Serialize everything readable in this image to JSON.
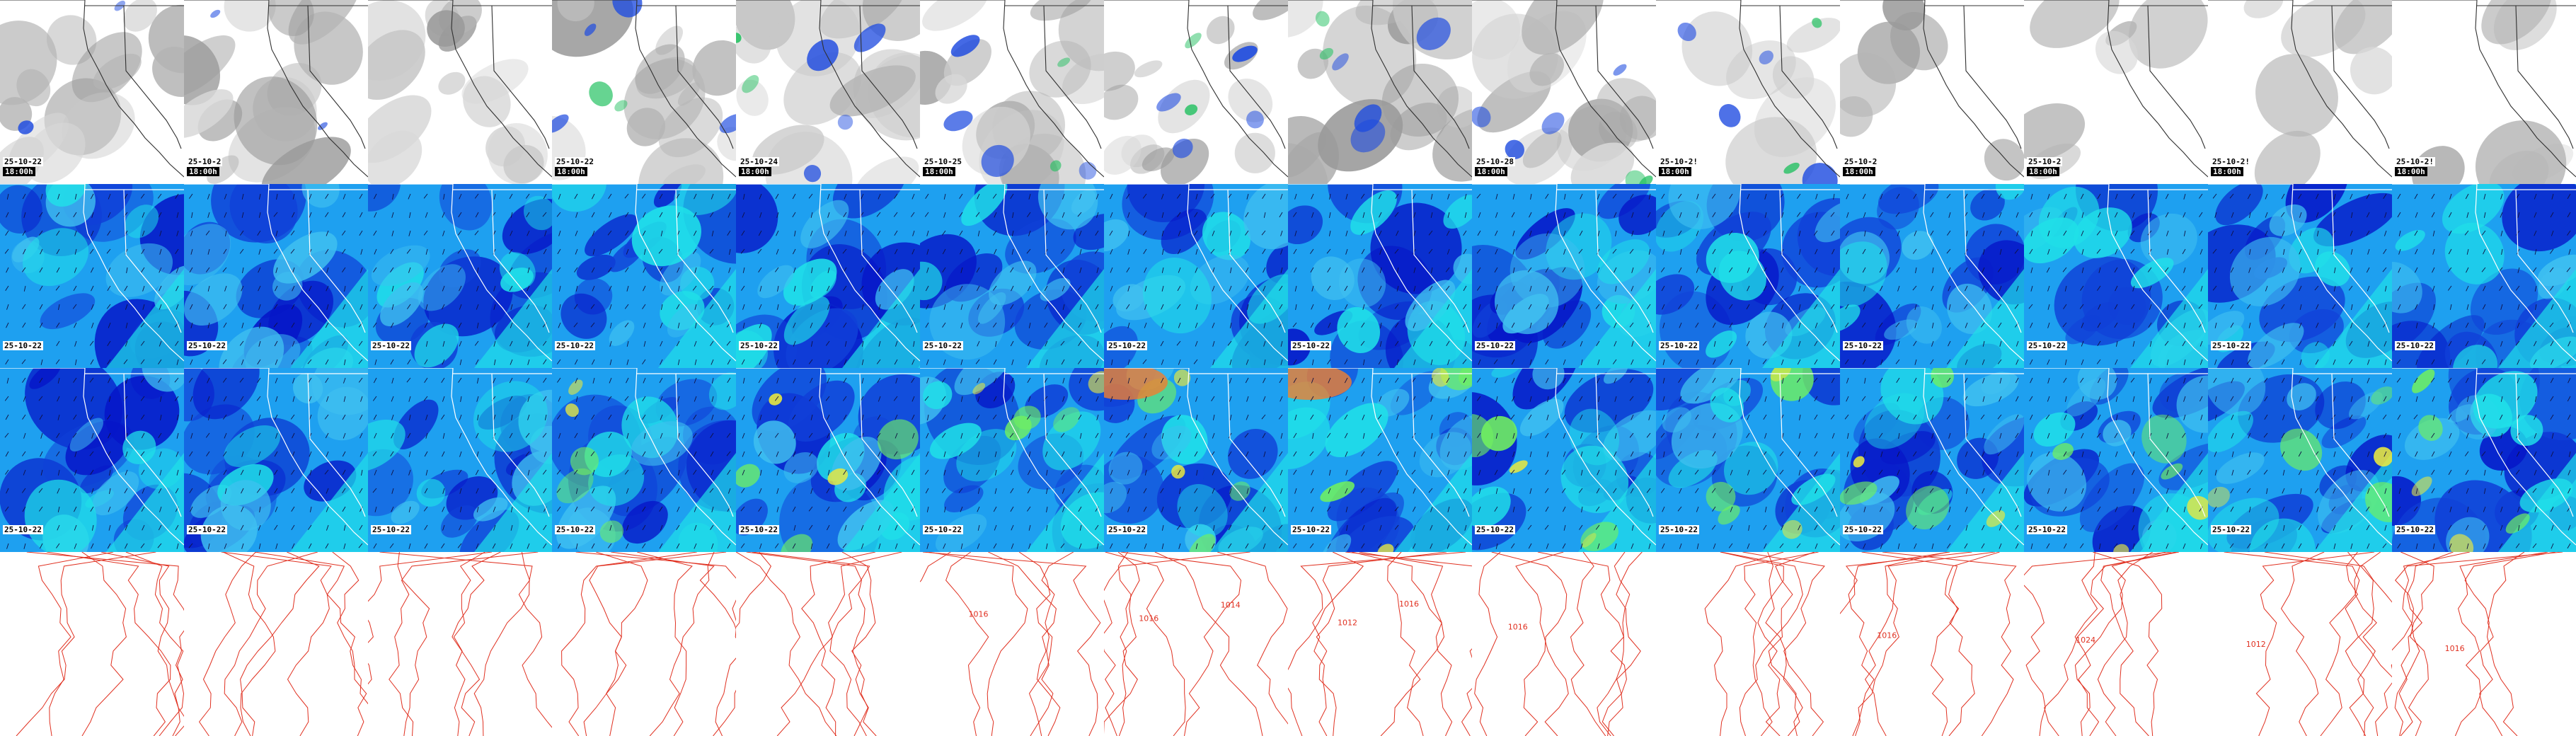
{
  "accent_colors": {
    "cloud_gray": "#a8a8a8",
    "precip_blue": "#1e4be0",
    "precip_green": "#22c060",
    "wind_dark": "#0616c8",
    "wind_mid": "#1ea0f0",
    "wind_cyan": "#20e0e8",
    "wind_green": "#70f060",
    "wind_yellow": "#e8e840",
    "wind_orange": "#f08030",
    "isobar_red": "#e03020",
    "border_line": "#ffffff"
  },
  "rows": [
    {
      "name": "cloud-precip-row",
      "tiles": [
        {
          "date": "25-10-22",
          "time": "18:00h"
        },
        {
          "date": "25-10-2",
          "time": "18:00h"
        },
        {
          "date": "",
          "time": ""
        },
        {
          "date": "25-10-22",
          "time": "18:00h"
        },
        {
          "date": "25-10-24",
          "time": "18:00h"
        },
        {
          "date": "25-10-25",
          "time": "18:00h"
        },
        {
          "date": "",
          "time": ""
        },
        {
          "date": "",
          "time": ""
        },
        {
          "date": "25-10-28",
          "time": "18:00h"
        },
        {
          "date": "25-10-2!",
          "time": "18:00h"
        },
        {
          "date": "25-10-2",
          "time": "18:00h"
        },
        {
          "date": "25-10-2",
          "time": "18:00h"
        },
        {
          "date": "25-10-2!",
          "time": "18:00h"
        },
        {
          "date": "25-10-2!",
          "time": "18:00h"
        }
      ]
    },
    {
      "name": "wind-surface-row",
      "tiles": [
        {
          "date": "25-10-22",
          "time": ""
        },
        {
          "date": "25-10-22",
          "time": ""
        },
        {
          "date": "25-10-22",
          "time": ""
        },
        {
          "date": "25-10-22",
          "time": ""
        },
        {
          "date": "25-10-22",
          "time": ""
        },
        {
          "date": "25-10-22",
          "time": ""
        },
        {
          "date": "25-10-22",
          "time": ""
        },
        {
          "date": "25-10-22",
          "time": ""
        },
        {
          "date": "25-10-22",
          "time": ""
        },
        {
          "date": "25-10-22",
          "time": ""
        },
        {
          "date": "25-10-22",
          "time": ""
        },
        {
          "date": "25-10-22",
          "time": ""
        },
        {
          "date": "25-10-22",
          "time": ""
        },
        {
          "date": "25-10-22",
          "time": ""
        }
      ]
    },
    {
      "name": "wind-upper-row",
      "tiles": [
        {
          "date": "25-10-22",
          "time": ""
        },
        {
          "date": "25-10-22",
          "time": ""
        },
        {
          "date": "25-10-22",
          "time": ""
        },
        {
          "date": "25-10-22",
          "time": ""
        },
        {
          "date": "25-10-22",
          "time": ""
        },
        {
          "date": "25-10-22",
          "time": ""
        },
        {
          "date": "25-10-22",
          "time": ""
        },
        {
          "date": "25-10-22",
          "time": ""
        },
        {
          "date": "25-10-22",
          "time": ""
        },
        {
          "date": "25-10-22",
          "time": ""
        },
        {
          "date": "25-10-22",
          "time": ""
        },
        {
          "date": "25-10-22",
          "time": ""
        },
        {
          "date": "25-10-22",
          "time": ""
        },
        {
          "date": "25-10-22",
          "time": ""
        }
      ]
    },
    {
      "name": "isobar-row",
      "tiles": [
        {
          "labels": []
        },
        {
          "labels": []
        },
        {
          "labels": []
        },
        {
          "labels": []
        },
        {
          "labels": []
        },
        {
          "labels": [
            "1016"
          ]
        },
        {
          "labels": [
            "1016",
            "1014"
          ]
        },
        {
          "labels": [
            "1012",
            "1016"
          ]
        },
        {
          "labels": [
            "1016"
          ]
        },
        {
          "labels": []
        },
        {
          "labels": [
            "1016"
          ]
        },
        {
          "labels": [
            "1024"
          ]
        },
        {
          "labels": [
            "1012"
          ]
        },
        {
          "labels": [
            "1016"
          ]
        }
      ]
    }
  ]
}
